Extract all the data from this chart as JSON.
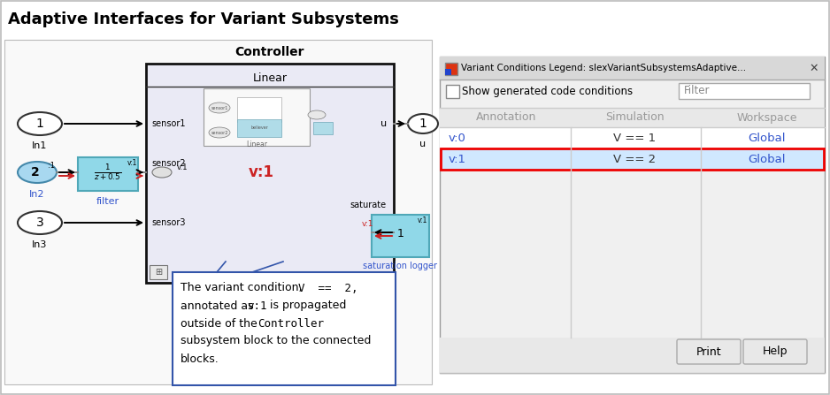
{
  "title": "Adaptive Interfaces for Variant Subsystems",
  "title_fontsize": 13,
  "bg_color": "#ffffff",
  "cyan_block": "#90d8e8",
  "cyan_block_edge": "#50a8b8",
  "cyan_in2": "#a8d8f0",
  "dialog_bg": "#f0f0f0",
  "highlight_row_bg": "#d0e8ff",
  "highlight_row_border": "#ee0000",
  "callout_border": "#3355aa",
  "blue_text": "#3355cc",
  "red_color": "#cc2222",
  "gray_line": "#888888",
  "controller_bg": "#eaeaf5",
  "mini_bg": "#f5f5ff",
  "mini_cyan": "#b0dce8",
  "row0_annotation": "v:0",
  "row0_simulation": "V == 1",
  "row0_workspace": "Global",
  "row1_annotation": "v:1",
  "row1_simulation": "V == 2",
  "row1_workspace": "Global"
}
